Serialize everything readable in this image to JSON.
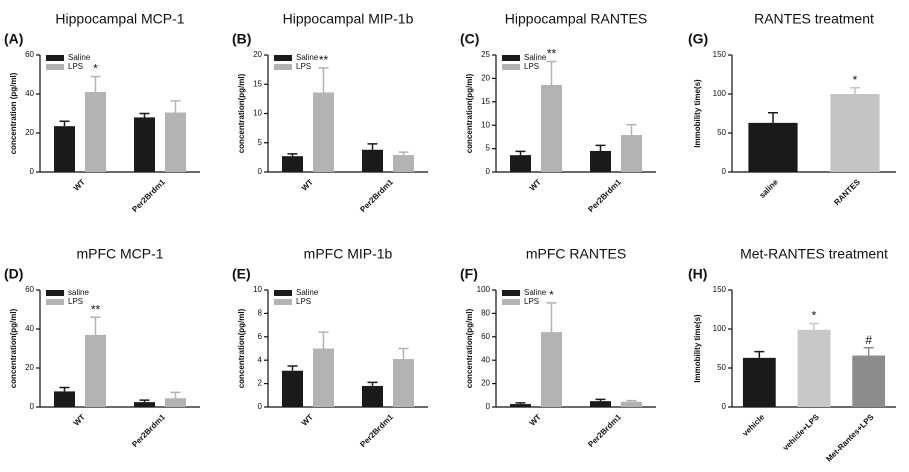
{
  "chart_data": [
    {
      "type": "bar",
      "panel": "(A)",
      "title": "Hippocampal MCP-1",
      "y_label": "concentration (pg/ml)",
      "categories": [
        "WT",
        "Per2Brdm1"
      ],
      "ylim": [
        0,
        60
      ],
      "yticks": [
        0,
        20,
        40,
        60
      ],
      "series": [
        {
          "name": "Saline",
          "color": "#1a1a1a",
          "values": [
            23.5,
            28
          ],
          "errors": [
            2.5,
            2
          ]
        },
        {
          "name": "LPS",
          "color": "#b3b3b3",
          "values": [
            41,
            30.5
          ],
          "errors": [
            8,
            6
          ],
          "annotations": [
            "*",
            null
          ]
        }
      ]
    },
    {
      "type": "bar",
      "panel": "(B)",
      "title": "Hippocampal MIP-1b",
      "y_label": "concentration(pg/ml)",
      "categories": [
        "WT",
        "Per2Brdm1"
      ],
      "ylim": [
        0,
        20
      ],
      "yticks": [
        0,
        5,
        10,
        15,
        20
      ],
      "series": [
        {
          "name": "Saline",
          "color": "#1a1a1a",
          "values": [
            2.7,
            3.8
          ],
          "errors": [
            0.4,
            1.0
          ]
        },
        {
          "name": "LPS",
          "color": "#b3b3b3",
          "values": [
            13.6,
            2.9
          ],
          "errors": [
            4.2,
            0.5
          ],
          "annotations": [
            "**",
            null
          ]
        }
      ]
    },
    {
      "type": "bar",
      "panel": "(C)",
      "title": "Hippocampal RANTES",
      "y_label": "concentration(pg/ml)",
      "categories": [
        "WT",
        "Per2Brdm1"
      ],
      "ylim": [
        0,
        25
      ],
      "yticks": [
        0,
        5,
        10,
        15,
        20,
        25
      ],
      "series": [
        {
          "name": "Saline",
          "color": "#1a1a1a",
          "values": [
            3.6,
            4.5
          ],
          "errors": [
            0.8,
            1.2
          ]
        },
        {
          "name": "LPS",
          "color": "#b3b3b3",
          "values": [
            18.6,
            7.9
          ],
          "errors": [
            5,
            2.2
          ],
          "annotations": [
            "**",
            null
          ]
        }
      ]
    },
    {
      "type": "bar",
      "panel": "(G)",
      "title": "RANTES treatment",
      "y_label": "Immobility time(s)",
      "categories": [
        "saline",
        "RANTES"
      ],
      "ylim": [
        0,
        150
      ],
      "yticks": [
        0,
        50,
        100,
        150
      ],
      "values": [
        63,
        100
      ],
      "errors": [
        13,
        8
      ],
      "colors": [
        "#1a1a1a",
        "#c4c4c4"
      ],
      "annotations": [
        null,
        "*"
      ]
    },
    {
      "type": "bar",
      "panel": "(D)",
      "title": "mPFC MCP-1",
      "y_label": "concentration(pg/ml)",
      "categories": [
        "WT",
        "Per2Brdm1"
      ],
      "ylim": [
        0,
        60
      ],
      "yticks": [
        0,
        20,
        40,
        60
      ],
      "series": [
        {
          "name": "saline",
          "color": "#1a1a1a",
          "values": [
            8,
            2.5
          ],
          "errors": [
            2,
            1
          ]
        },
        {
          "name": "LPS",
          "color": "#b3b3b3",
          "values": [
            37,
            4.5
          ],
          "errors": [
            9,
            3
          ],
          "annotations": [
            "**",
            null
          ]
        }
      ]
    },
    {
      "type": "bar",
      "panel": "(E)",
      "title": "mPFC MIP-1b",
      "y_label": "concentration(pg/ml)",
      "categories": [
        "WT",
        "Per2Brdm1"
      ],
      "ylim": [
        0,
        10
      ],
      "yticks": [
        0,
        2,
        4,
        6,
        8,
        10
      ],
      "series": [
        {
          "name": "Saline",
          "color": "#1a1a1a",
          "values": [
            3.1,
            1.8
          ],
          "errors": [
            0.4,
            0.3
          ]
        },
        {
          "name": "LPS",
          "color": "#b3b3b3",
          "values": [
            5.0,
            4.1
          ],
          "errors": [
            1.4,
            0.9
          ]
        }
      ]
    },
    {
      "type": "bar",
      "panel": "(F)",
      "title": "mPFC RANTES",
      "y_label": "concentration(pg/ml)",
      "categories": [
        "WT",
        "Per2Brdm1"
      ],
      "ylim": [
        0,
        100
      ],
      "yticks": [
        0,
        20,
        40,
        60,
        80,
        100
      ],
      "series": [
        {
          "name": "Saline",
          "color": "#1a1a1a",
          "values": [
            2.5,
            5
          ],
          "errors": [
            1,
            1.5
          ]
        },
        {
          "name": "LPS",
          "color": "#b3b3b3",
          "values": [
            64,
            4.5
          ],
          "errors": [
            25,
            1
          ],
          "annotations": [
            "*",
            null
          ]
        }
      ]
    },
    {
      "type": "bar",
      "panel": "(H)",
      "title": "Met-RANTES treatment",
      "y_label": "Immobility time(s)",
      "categories": [
        "vehicle",
        "vehicle+LPS",
        "Met-Rantes+LPS"
      ],
      "ylim": [
        0,
        150
      ],
      "yticks": [
        0,
        50,
        100,
        150
      ],
      "values": [
        63,
        99,
        66
      ],
      "errors": [
        8,
        8,
        10
      ],
      "colors": [
        "#1a1a1a",
        "#c8c8c8",
        "#8c8c8c"
      ],
      "annotations": [
        null,
        "*",
        "#"
      ]
    }
  ]
}
